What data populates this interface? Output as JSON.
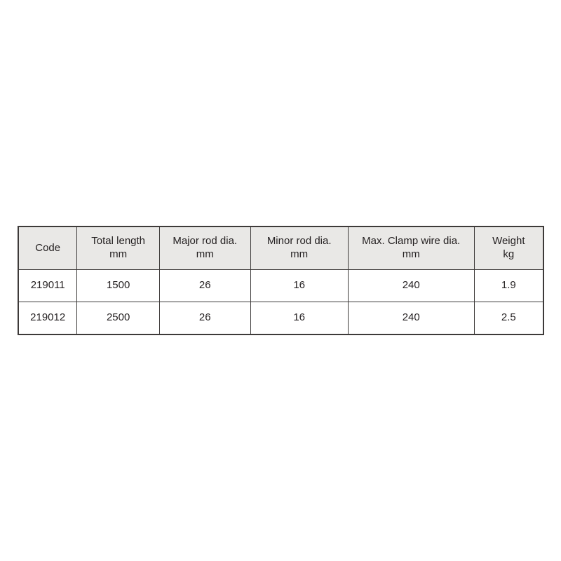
{
  "table": {
    "header_bg": "#e9e8e6",
    "border_color": "#3d3a39",
    "text_color": "#231f20",
    "columns": [
      {
        "label": "Code",
        "unit": ""
      },
      {
        "label": "Total length",
        "unit": "mm"
      },
      {
        "label": "Major rod dia.",
        "unit": "mm"
      },
      {
        "label": "Minor rod dia.",
        "unit": "mm"
      },
      {
        "label": "Max. Clamp wire dia.",
        "unit": "mm"
      },
      {
        "label": "Weight",
        "unit": "kg"
      }
    ],
    "rows": [
      {
        "code": "219011",
        "total_length_mm": "1500",
        "major_rod_dia_mm": "26",
        "minor_rod_dia_mm": "16",
        "max_clamp_wire_dia_mm": "240",
        "weight_kg": "1.9"
      },
      {
        "code": "219012",
        "total_length_mm": "2500",
        "major_rod_dia_mm": "26",
        "minor_rod_dia_mm": "16",
        "max_clamp_wire_dia_mm": "240",
        "weight_kg": "2.5"
      }
    ]
  }
}
